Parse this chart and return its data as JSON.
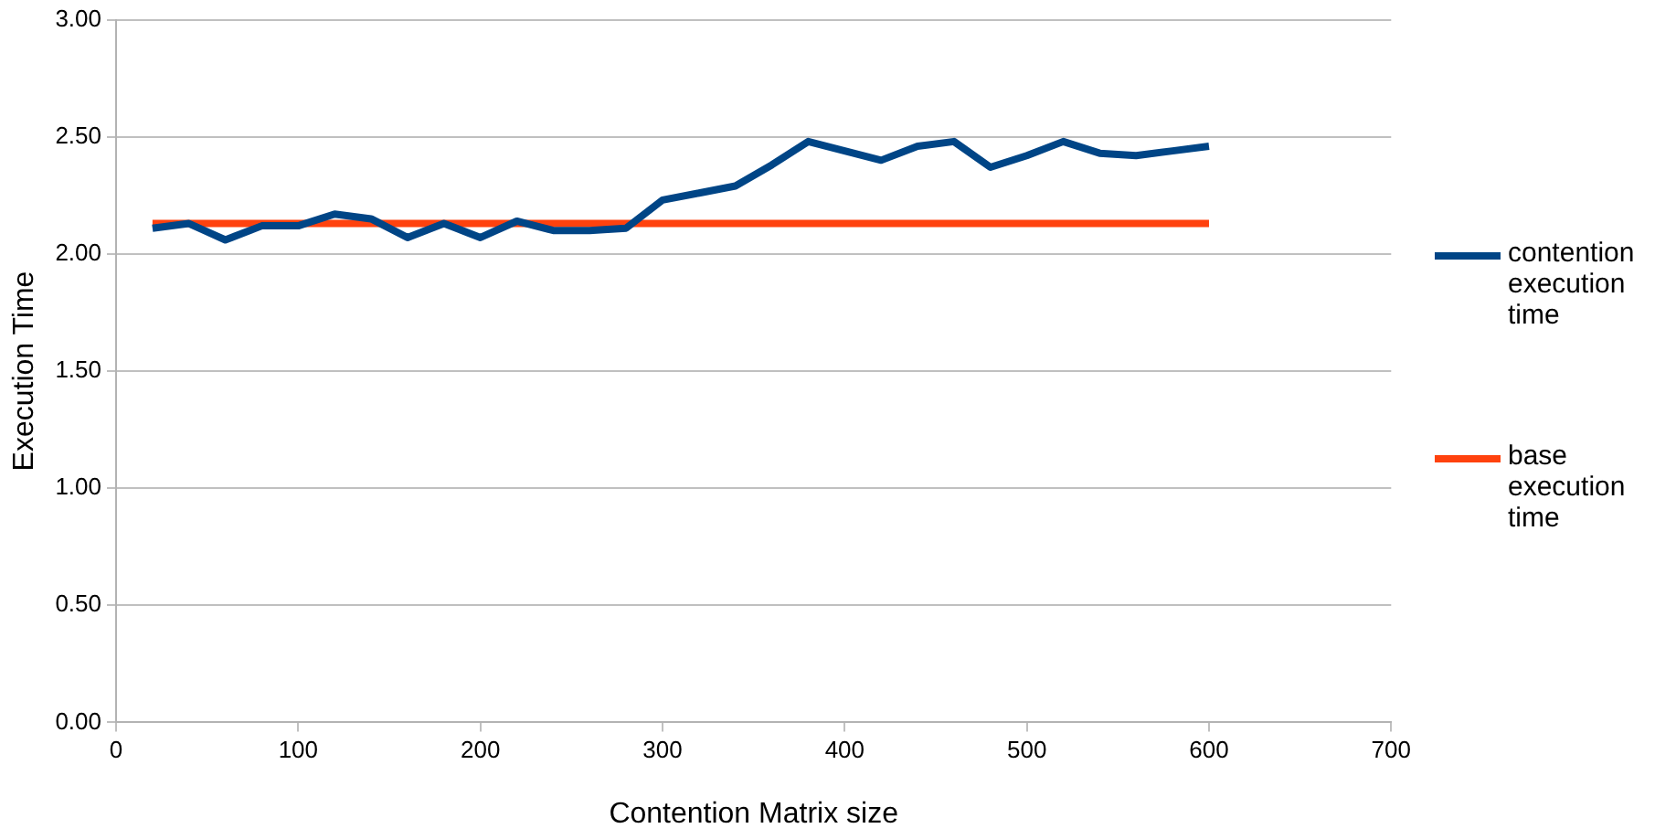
{
  "chart_data": {
    "type": "line",
    "xlabel": "Contention Matrix size",
    "ylabel": "Execution Time",
    "xlim": [
      0,
      700
    ],
    "xticks": [
      0,
      100,
      200,
      300,
      400,
      500,
      600,
      700
    ],
    "ylim": [
      0,
      3
    ],
    "yticks": [
      {
        "value": 0,
        "label": "0.00"
      },
      {
        "value": 0.5,
        "label": "0.50"
      },
      {
        "value": 1,
        "label": "1.00"
      },
      {
        "value": 1.5,
        "label": "1.50"
      },
      {
        "value": 2,
        "label": "2.00"
      },
      {
        "value": 2.5,
        "label": "2.50"
      },
      {
        "value": 3,
        "label": "3.00"
      }
    ],
    "grid": "y",
    "legend": "right",
    "marker": "none",
    "series": [
      {
        "name": "contention execution time",
        "color": "#004586",
        "x": [
          20,
          40,
          60,
          80,
          100,
          120,
          140,
          160,
          180,
          200,
          220,
          240,
          260,
          280,
          300,
          320,
          340,
          360,
          380,
          400,
          420,
          440,
          460,
          480,
          500,
          520,
          540,
          560,
          580,
          600
        ],
        "values": [
          2.11,
          2.13,
          2.06,
          2.12,
          2.12,
          2.17,
          2.15,
          2.07,
          2.13,
          2.07,
          2.14,
          2.1,
          2.1,
          2.11,
          2.23,
          2.26,
          2.29,
          2.38,
          2.48,
          2.44,
          2.4,
          2.46,
          2.48,
          2.37,
          2.42,
          2.48,
          2.43,
          2.42,
          2.44,
          2.46
        ]
      },
      {
        "name": "base execution time",
        "color": "#ff420e",
        "x": [
          20,
          600
        ],
        "values": [
          2.13,
          2.13
        ]
      }
    ]
  }
}
